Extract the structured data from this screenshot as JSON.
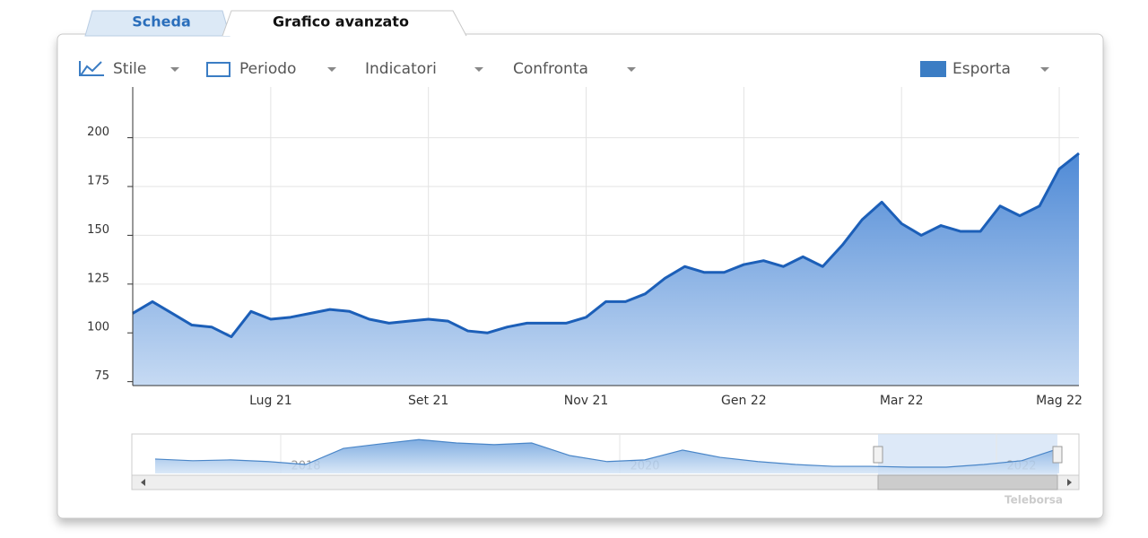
{
  "tabs": [
    "Scheda",
    "Grafico avanzato"
  ],
  "toolbar": [
    "Stile",
    "Periodo",
    "Indicatori",
    "Confronta",
    "Esporta"
  ],
  "credit": "Teleborsa",
  "chart_data": [
    {
      "type": "area",
      "color": "#1c5fb8",
      "grid": true,
      "categories": [
        null,
        null,
        null,
        null,
        null,
        null,
        null,
        "Lug 21",
        null,
        null,
        null,
        null,
        null,
        null,
        null,
        "Set 21",
        null,
        null,
        null,
        null,
        null,
        null,
        null,
        "Nov 21",
        null,
        null,
        null,
        null,
        null,
        null,
        null,
        "Gen 22",
        null,
        null,
        null,
        null,
        null,
        null,
        null,
        "Mar 22",
        null,
        null,
        null,
        null,
        null,
        null,
        null,
        "Mag 22",
        null
      ],
      "values": [
        110,
        116,
        110,
        104,
        103,
        98,
        111,
        107,
        108,
        110,
        112,
        111,
        107,
        105,
        106,
        107,
        106,
        101,
        100,
        103,
        105,
        105,
        105,
        108,
        116,
        116,
        120,
        128,
        134,
        131,
        131,
        135,
        137,
        134,
        139,
        134,
        145,
        158,
        167,
        156,
        150,
        155,
        152,
        152,
        165,
        160,
        165,
        184,
        192
      ],
      "ylim": [
        73,
        226
      ],
      "yticks": [
        75,
        100,
        125,
        150,
        175,
        200
      ]
    },
    {
      "type": "area",
      "color": "#4a86c8",
      "grid": false,
      "categories": [
        null,
        null,
        null,
        null,
        "2018",
        null,
        null,
        null,
        null,
        null,
        null,
        null,
        null,
        "2020",
        null,
        null,
        null,
        null,
        null,
        null,
        null,
        null,
        null,
        "2022",
        null
      ],
      "values": [
        125,
        115,
        120,
        110,
        93,
        188,
        215,
        240,
        220,
        210,
        220,
        146,
        110,
        120,
        178,
        135,
        110,
        93,
        82,
        82,
        77,
        77,
        93,
        115,
        188
      ],
      "ylim": [
        40,
        273
      ]
    }
  ]
}
